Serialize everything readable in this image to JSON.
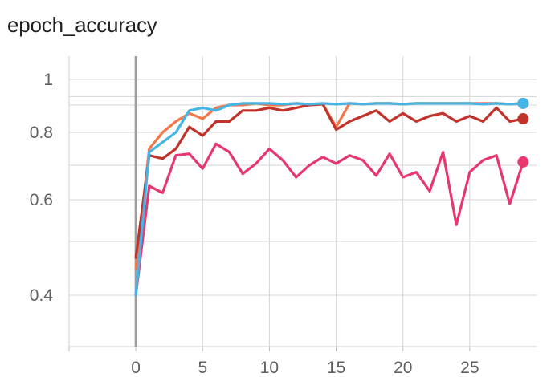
{
  "chart_data": {
    "type": "line",
    "title": "epoch_accuracy",
    "xlabel": "",
    "ylabel": "",
    "x_ticks": [
      "0",
      "5",
      "10",
      "15",
      "20",
      "25"
    ],
    "y_ticks": [
      "0.4",
      "0.6",
      "0.8",
      "1"
    ],
    "y_tick_values": [
      0.4,
      0.6,
      0.8,
      1.0
    ],
    "xlim": [
      -5,
      30
    ],
    "ylim": [
      0.34,
      1.06
    ],
    "y_scale": "nonlinear",
    "y_gridlines": [
      0.4,
      0.5,
      0.6,
      0.7,
      0.8,
      0.85,
      0.9,
      1.0
    ],
    "grid": true,
    "legend": "none",
    "x": [
      0,
      1,
      2,
      3,
      4,
      5,
      6,
      7,
      8,
      9,
      10,
      11,
      12,
      13,
      14,
      15,
      16,
      17,
      18,
      19,
      20,
      21,
      22,
      23,
      24,
      25,
      26,
      27,
      28,
      29
    ],
    "series": [
      {
        "color": "#f4774a",
        "values": [
          0.45,
          0.75,
          0.8,
          0.82,
          0.835,
          0.825,
          0.845,
          0.85,
          0.85,
          0.86,
          0.85,
          0.85,
          0.86,
          0.855,
          0.855,
          0.81,
          0.86,
          0.855,
          0.86,
          0.86,
          0.855,
          0.86,
          0.86,
          0.86,
          0.86,
          0.86,
          0.86,
          0.86,
          0.855,
          0.86
        ]
      },
      {
        "color": "#c1332a",
        "values": [
          0.47,
          0.73,
          0.72,
          0.75,
          0.81,
          0.79,
          0.82,
          0.82,
          0.84,
          0.84,
          0.845,
          0.84,
          0.845,
          0.85,
          0.855,
          0.805,
          0.82,
          0.83,
          0.84,
          0.82,
          0.835,
          0.82,
          0.83,
          0.835,
          0.82,
          0.83,
          0.82,
          0.845,
          0.82,
          0.825
        ]
      },
      {
        "color": "#e6376f",
        "values": [
          0.4,
          0.64,
          0.62,
          0.73,
          0.735,
          0.69,
          0.765,
          0.74,
          0.675,
          0.705,
          0.75,
          0.715,
          0.665,
          0.7,
          0.725,
          0.705,
          0.73,
          0.715,
          0.67,
          0.735,
          0.665,
          0.68,
          0.625,
          0.74,
          0.54,
          0.68,
          0.715,
          0.73,
          0.59,
          0.71
        ]
      },
      {
        "color": "#45b4e7",
        "values": [
          0.4,
          0.74,
          0.77,
          0.8,
          0.84,
          0.845,
          0.84,
          0.85,
          0.86,
          0.86,
          0.86,
          0.855,
          0.86,
          0.855,
          0.86,
          0.855,
          0.86,
          0.855,
          0.86,
          0.86,
          0.855,
          0.86,
          0.86,
          0.86,
          0.86,
          0.86,
          0.855,
          0.86,
          0.855,
          0.86
        ]
      }
    ]
  }
}
